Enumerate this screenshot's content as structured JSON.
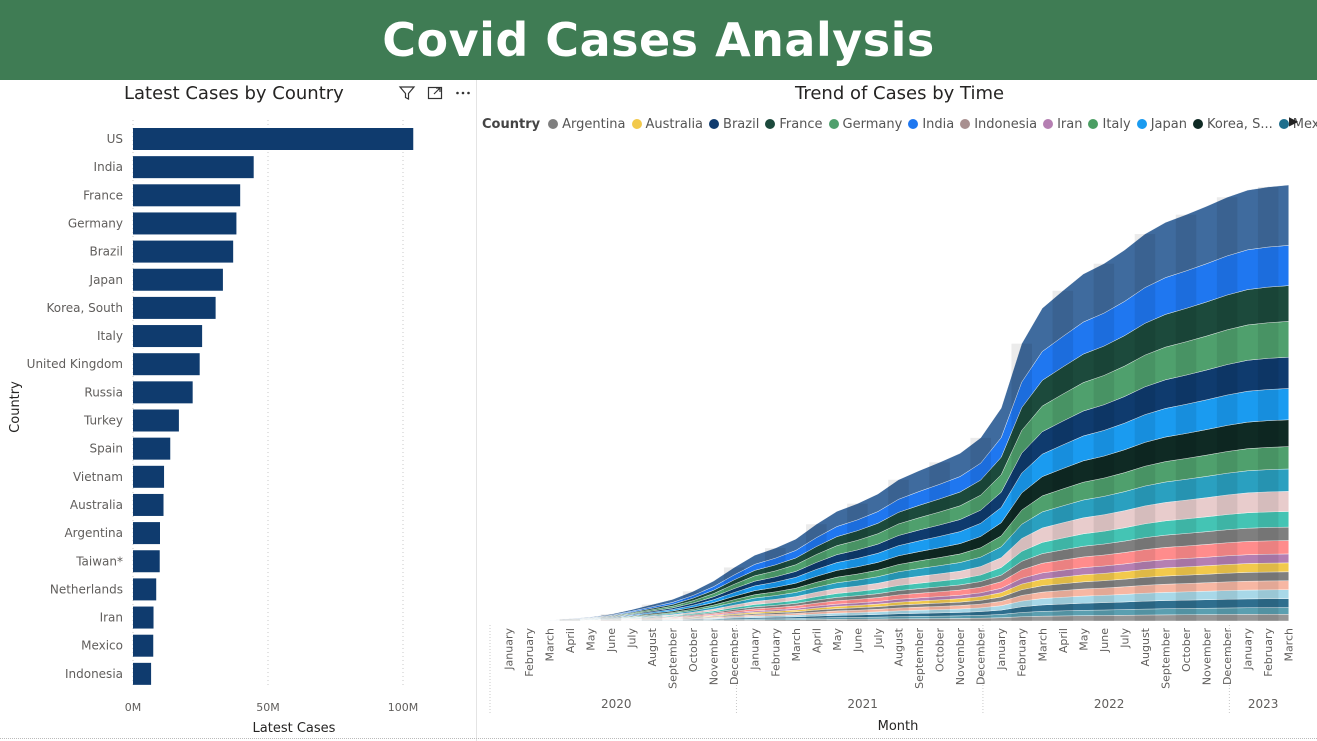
{
  "page": {
    "title": "Covid Cases Analysis",
    "banner_color": "#3f7c54"
  },
  "toolbar": {
    "icons": [
      "filter-icon",
      "focus-mode-icon",
      "more-options-icon"
    ]
  },
  "chart_data": [
    {
      "type": "bar",
      "orientation": "horizontal",
      "title": "Latest Cases by Country",
      "xlabel": "Latest Cases",
      "ylabel": "Country",
      "xlim": [
        0,
        110000000
      ],
      "x_ticks": [
        {
          "value": 0,
          "label": "0M"
        },
        {
          "value": 50000000,
          "label": "50M"
        },
        {
          "value": 100000000,
          "label": "100M"
        }
      ],
      "grid": true,
      "bar_color": "#0f3b6e",
      "categories": [
        "US",
        "India",
        "France",
        "Germany",
        "Brazil",
        "Japan",
        "Korea, South",
        "Italy",
        "United Kingdom",
        "Russia",
        "Turkey",
        "Spain",
        "Vietnam",
        "Australia",
        "Argentina",
        "Taiwan*",
        "Netherlands",
        "Iran",
        "Mexico",
        "Indonesia"
      ],
      "values": [
        103800000,
        44700000,
        39700000,
        38300000,
        37100000,
        33300000,
        30600000,
        25600000,
        24700000,
        22100000,
        17000000,
        13800000,
        11500000,
        11300000,
        10000000,
        9900000,
        8600000,
        7600000,
        7500000,
        6700000
      ]
    },
    {
      "type": "area",
      "stacked": true,
      "title": "Trend of Cases by Time",
      "xlabel": "Month",
      "ylabel": "",
      "legend": {
        "title": "Country",
        "position": "top"
      },
      "legend_items": [
        {
          "name": "Argentina",
          "color": "#7f7f7f"
        },
        {
          "name": "Australia",
          "color": "#f2c94c"
        },
        {
          "name": "Brazil",
          "color": "#0f3b6e"
        },
        {
          "name": "France",
          "color": "#1c4a3c"
        },
        {
          "name": "Germany",
          "color": "#4fa06d"
        },
        {
          "name": "India",
          "color": "#1f77f0"
        },
        {
          "name": "Indonesia",
          "color": "#a88f8f"
        },
        {
          "name": "Iran",
          "color": "#b57fb2"
        },
        {
          "name": "Italy",
          "color": "#4a9e63"
        },
        {
          "name": "Japan",
          "color": "#1a9bf0"
        },
        {
          "name": "Korea, S...",
          "color": "#0f2a24"
        },
        {
          "name": "Mexico",
          "color": "#1e6e8c"
        }
      ],
      "x": [
        "January",
        "February",
        "March",
        "April",
        "May",
        "June",
        "July",
        "August",
        "September",
        "October",
        "November",
        "December",
        "January",
        "February",
        "March",
        "April",
        "May",
        "June",
        "July",
        "August",
        "September",
        "October",
        "November",
        "December",
        "January",
        "February",
        "March",
        "April",
        "May",
        "June",
        "July",
        "August",
        "September",
        "October",
        "November",
        "December",
        "January",
        "February",
        "March"
      ],
      "years": [
        {
          "label": "2020",
          "start": 0,
          "end": 11
        },
        {
          "label": "2021",
          "start": 12,
          "end": 23
        },
        {
          "label": "2022",
          "start": 24,
          "end": 35
        },
        {
          "label": "2023",
          "start": 36,
          "end": 38
        }
      ],
      "total": [
        0.01,
        0.02,
        0.8,
        3.2,
        6.0,
        10.5,
        17.5,
        25.5,
        33.5,
        46,
        62,
        83,
        102,
        113,
        127,
        150,
        170,
        182,
        197,
        219,
        233,
        246,
        260,
        284,
        330,
        430,
        485,
        512,
        538,
        554,
        575,
        600,
        618,
        630,
        643,
        657,
        668,
        673,
        676
      ]
    }
  ]
}
